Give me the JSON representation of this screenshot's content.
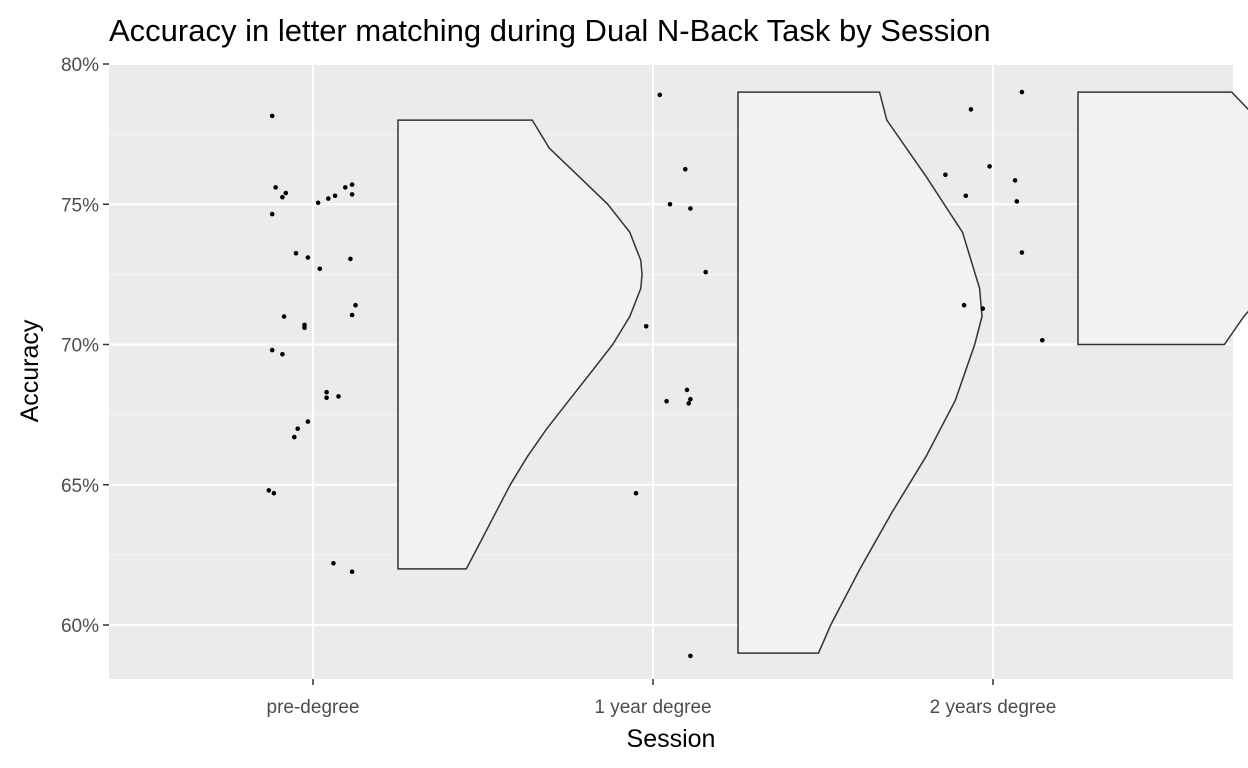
{
  "chart_data": {
    "type": "scatter",
    "subtype": "raincloud (half-violin with jittered points)",
    "title": "Accuracy in letter matching during Dual N-Back Task by Session",
    "xlabel": "Session",
    "ylabel": "Accuracy",
    "categories": [
      "pre-degree",
      "1 year degree",
      "2 years degree"
    ],
    "ylim": [
      0.58,
      0.8
    ],
    "yticks": [
      0.6,
      0.65,
      0.7,
      0.75,
      0.8
    ],
    "ytick_labels": [
      "60%",
      "65%",
      "70%",
      "75%",
      "80%"
    ],
    "grid": true,
    "legend": "none",
    "colors": {
      "panel_background": "#ebebeb",
      "grid_major": "#ffffff",
      "grid_minor": "#f5f5f5",
      "violin_fill": "#f2f2f2",
      "violin_stroke": "#333333",
      "point": "#000000"
    },
    "series": [
      {
        "category": "pre-degree",
        "points": [
          {
            "jitter": -0.12,
            "y": 0.7815
          },
          {
            "jitter": -0.11,
            "y": 0.756
          },
          {
            "jitter": -0.08,
            "y": 0.754
          },
          {
            "jitter": -0.09,
            "y": 0.7525
          },
          {
            "jitter": -0.12,
            "y": 0.7465
          },
          {
            "jitter": 0.015,
            "y": 0.7505
          },
          {
            "jitter": 0.045,
            "y": 0.752
          },
          {
            "jitter": 0.065,
            "y": 0.753
          },
          {
            "jitter": 0.095,
            "y": 0.756
          },
          {
            "jitter": 0.115,
            "y": 0.757
          },
          {
            "jitter": 0.115,
            "y": 0.7535
          },
          {
            "jitter": -0.05,
            "y": 0.7325
          },
          {
            "jitter": -0.015,
            "y": 0.731
          },
          {
            "jitter": 0.02,
            "y": 0.727
          },
          {
            "jitter": 0.11,
            "y": 0.7305
          },
          {
            "jitter": 0.125,
            "y": 0.714
          },
          {
            "jitter": 0.115,
            "y": 0.7105
          },
          {
            "jitter": -0.085,
            "y": 0.71
          },
          {
            "jitter": -0.025,
            "y": 0.707
          },
          {
            "jitter": -0.025,
            "y": 0.706
          },
          {
            "jitter": -0.12,
            "y": 0.698
          },
          {
            "jitter": -0.09,
            "y": 0.6965
          },
          {
            "jitter": 0.04,
            "y": 0.683
          },
          {
            "jitter": 0.04,
            "y": 0.681
          },
          {
            "jitter": 0.075,
            "y": 0.6815
          },
          {
            "jitter": -0.015,
            "y": 0.6725
          },
          {
            "jitter": -0.045,
            "y": 0.67
          },
          {
            "jitter": -0.055,
            "y": 0.667
          },
          {
            "jitter": -0.13,
            "y": 0.648
          },
          {
            "jitter": -0.115,
            "y": 0.647
          },
          {
            "jitter": 0.06,
            "y": 0.622
          },
          {
            "jitter": 0.115,
            "y": 0.619
          }
        ],
        "violin": {
          "ymin": 0.62,
          "ymax": 0.78,
          "profile": [
            [
              0.62,
              0.28
            ],
            [
              0.63,
              0.34
            ],
            [
              0.64,
              0.4
            ],
            [
              0.65,
              0.46
            ],
            [
              0.66,
              0.53
            ],
            [
              0.67,
              0.61
            ],
            [
              0.68,
              0.7
            ],
            [
              0.69,
              0.79
            ],
            [
              0.7,
              0.88
            ],
            [
              0.71,
              0.95
            ],
            [
              0.72,
              0.995
            ],
            [
              0.725,
              1.0
            ],
            [
              0.73,
              0.995
            ],
            [
              0.74,
              0.95
            ],
            [
              0.75,
              0.86
            ],
            [
              0.76,
              0.74
            ],
            [
              0.77,
              0.62
            ],
            [
              0.78,
              0.55
            ]
          ]
        }
      },
      {
        "category": "1 year degree",
        "points": [
          {
            "jitter": 0.02,
            "y": 0.789
          },
          {
            "jitter": 0.095,
            "y": 0.7625
          },
          {
            "jitter": 0.05,
            "y": 0.75
          },
          {
            "jitter": 0.11,
            "y": 0.7485
          },
          {
            "jitter": 0.155,
            "y": 0.7258
          },
          {
            "jitter": -0.02,
            "y": 0.7065
          },
          {
            "jitter": 0.1,
            "y": 0.6838
          },
          {
            "jitter": 0.11,
            "y": 0.6805
          },
          {
            "jitter": 0.04,
            "y": 0.6798
          },
          {
            "jitter": 0.105,
            "y": 0.679
          },
          {
            "jitter": -0.05,
            "y": 0.647
          },
          {
            "jitter": 0.11,
            "y": 0.589
          }
        ],
        "violin": {
          "ymin": 0.59,
          "ymax": 0.79,
          "profile": [
            [
              0.59,
              0.33
            ],
            [
              0.6,
              0.38
            ],
            [
              0.62,
              0.5
            ],
            [
              0.64,
              0.63
            ],
            [
              0.66,
              0.77
            ],
            [
              0.68,
              0.89
            ],
            [
              0.7,
              0.97
            ],
            [
              0.71,
              1.0
            ],
            [
              0.72,
              0.99
            ],
            [
              0.74,
              0.92
            ],
            [
              0.76,
              0.77
            ],
            [
              0.78,
              0.61
            ],
            [
              0.79,
              0.58
            ]
          ]
        }
      },
      {
        "category": "2 years degree",
        "points": [
          {
            "jitter": 0.085,
            "y": 0.79
          },
          {
            "jitter": -0.065,
            "y": 0.7838
          },
          {
            "jitter": -0.14,
            "y": 0.7605
          },
          {
            "jitter": -0.01,
            "y": 0.7635
          },
          {
            "jitter": 0.065,
            "y": 0.7585
          },
          {
            "jitter": -0.08,
            "y": 0.753
          },
          {
            "jitter": 0.07,
            "y": 0.751
          },
          {
            "jitter": 0.085,
            "y": 0.7328
          },
          {
            "jitter": -0.085,
            "y": 0.714
          },
          {
            "jitter": -0.03,
            "y": 0.7128
          },
          {
            "jitter": 0.145,
            "y": 0.7015
          }
        ],
        "violin": {
          "ymin": 0.7,
          "ymax": 0.79,
          "profile": [
            [
              0.7,
              0.6
            ],
            [
              0.71,
              0.68
            ],
            [
              0.72,
              0.78
            ],
            [
              0.73,
              0.88
            ],
            [
              0.74,
              0.96
            ],
            [
              0.75,
              1.0
            ],
            [
              0.76,
              0.96
            ],
            [
              0.77,
              0.86
            ],
            [
              0.78,
              0.74
            ],
            [
              0.79,
              0.63
            ]
          ]
        }
      }
    ]
  }
}
